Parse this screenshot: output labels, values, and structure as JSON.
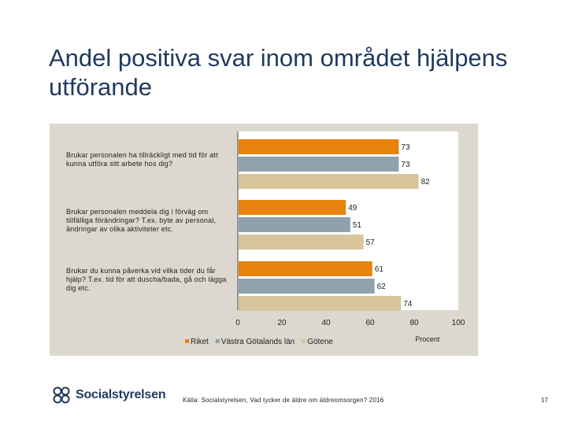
{
  "title": "Andel positiva svar inom området hjälpens utförande",
  "chart_data": {
    "type": "bar",
    "orientation": "horizontal",
    "categories": [
      "Brukar personalen ha tillräckligt med tid för att kunna utföra sitt arbete hos dig?",
      "Brukar personalen meddela dig i förväg om tillfälliga förändringar? T.ex. byte av personal, ändringar av olika aktiviteter etc.",
      "Brukar du kunna påverka vid vilka tider du får hjälp? T.ex. tid för att duscha/bada, gå och lägga dig etc."
    ],
    "series": [
      {
        "name": "Riket",
        "values": [
          73,
          49,
          61
        ],
        "color": "#e8830e"
      },
      {
        "name": "Västra Götalands län",
        "values": [
          73,
          51,
          62
        ],
        "color": "#8fa1ad"
      },
      {
        "name": "Götene",
        "values": [
          82,
          57,
          74
        ],
        "color": "#d8c59b"
      }
    ],
    "xlim": [
      0,
      100
    ],
    "xticks": [
      "0",
      "20",
      "40",
      "60",
      "80",
      "100"
    ],
    "xlabel": "Procent",
    "legend_position": "bottom-left"
  },
  "footer": {
    "logo_text": "Socialstyrelsen",
    "source": "Källa: Socialstyrelsen, Vad tycker de äldre om äldreomsorgen? 2016",
    "page_number": "17"
  }
}
